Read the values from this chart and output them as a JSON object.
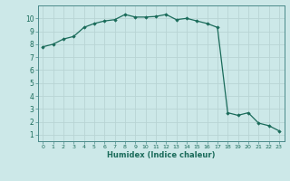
{
  "x": [
    0,
    1,
    2,
    3,
    4,
    5,
    6,
    7,
    8,
    9,
    10,
    11,
    12,
    13,
    14,
    15,
    16,
    17,
    18,
    19,
    20,
    21,
    22,
    23
  ],
  "y": [
    7.8,
    8.0,
    8.4,
    8.6,
    9.3,
    9.6,
    9.8,
    9.9,
    10.3,
    10.1,
    10.1,
    10.15,
    10.3,
    9.9,
    10.0,
    9.8,
    9.6,
    9.3,
    2.7,
    2.5,
    2.7,
    1.9,
    1.7,
    1.3
  ],
  "xlim": [
    -0.5,
    23.5
  ],
  "ylim": [
    0.5,
    11
  ],
  "yticks": [
    1,
    2,
    3,
    4,
    5,
    6,
    7,
    8,
    9,
    10
  ],
  "xticks": [
    0,
    1,
    2,
    3,
    4,
    5,
    6,
    7,
    8,
    9,
    10,
    11,
    12,
    13,
    14,
    15,
    16,
    17,
    18,
    19,
    20,
    21,
    22,
    23
  ],
  "xlabel": "Humidex (Indice chaleur)",
  "line_color": "#1a6b5a",
  "marker": "D",
  "marker_size": 1.8,
  "bg_color": "#cce8e8",
  "grid_color": "#b8d4d4",
  "title": ""
}
